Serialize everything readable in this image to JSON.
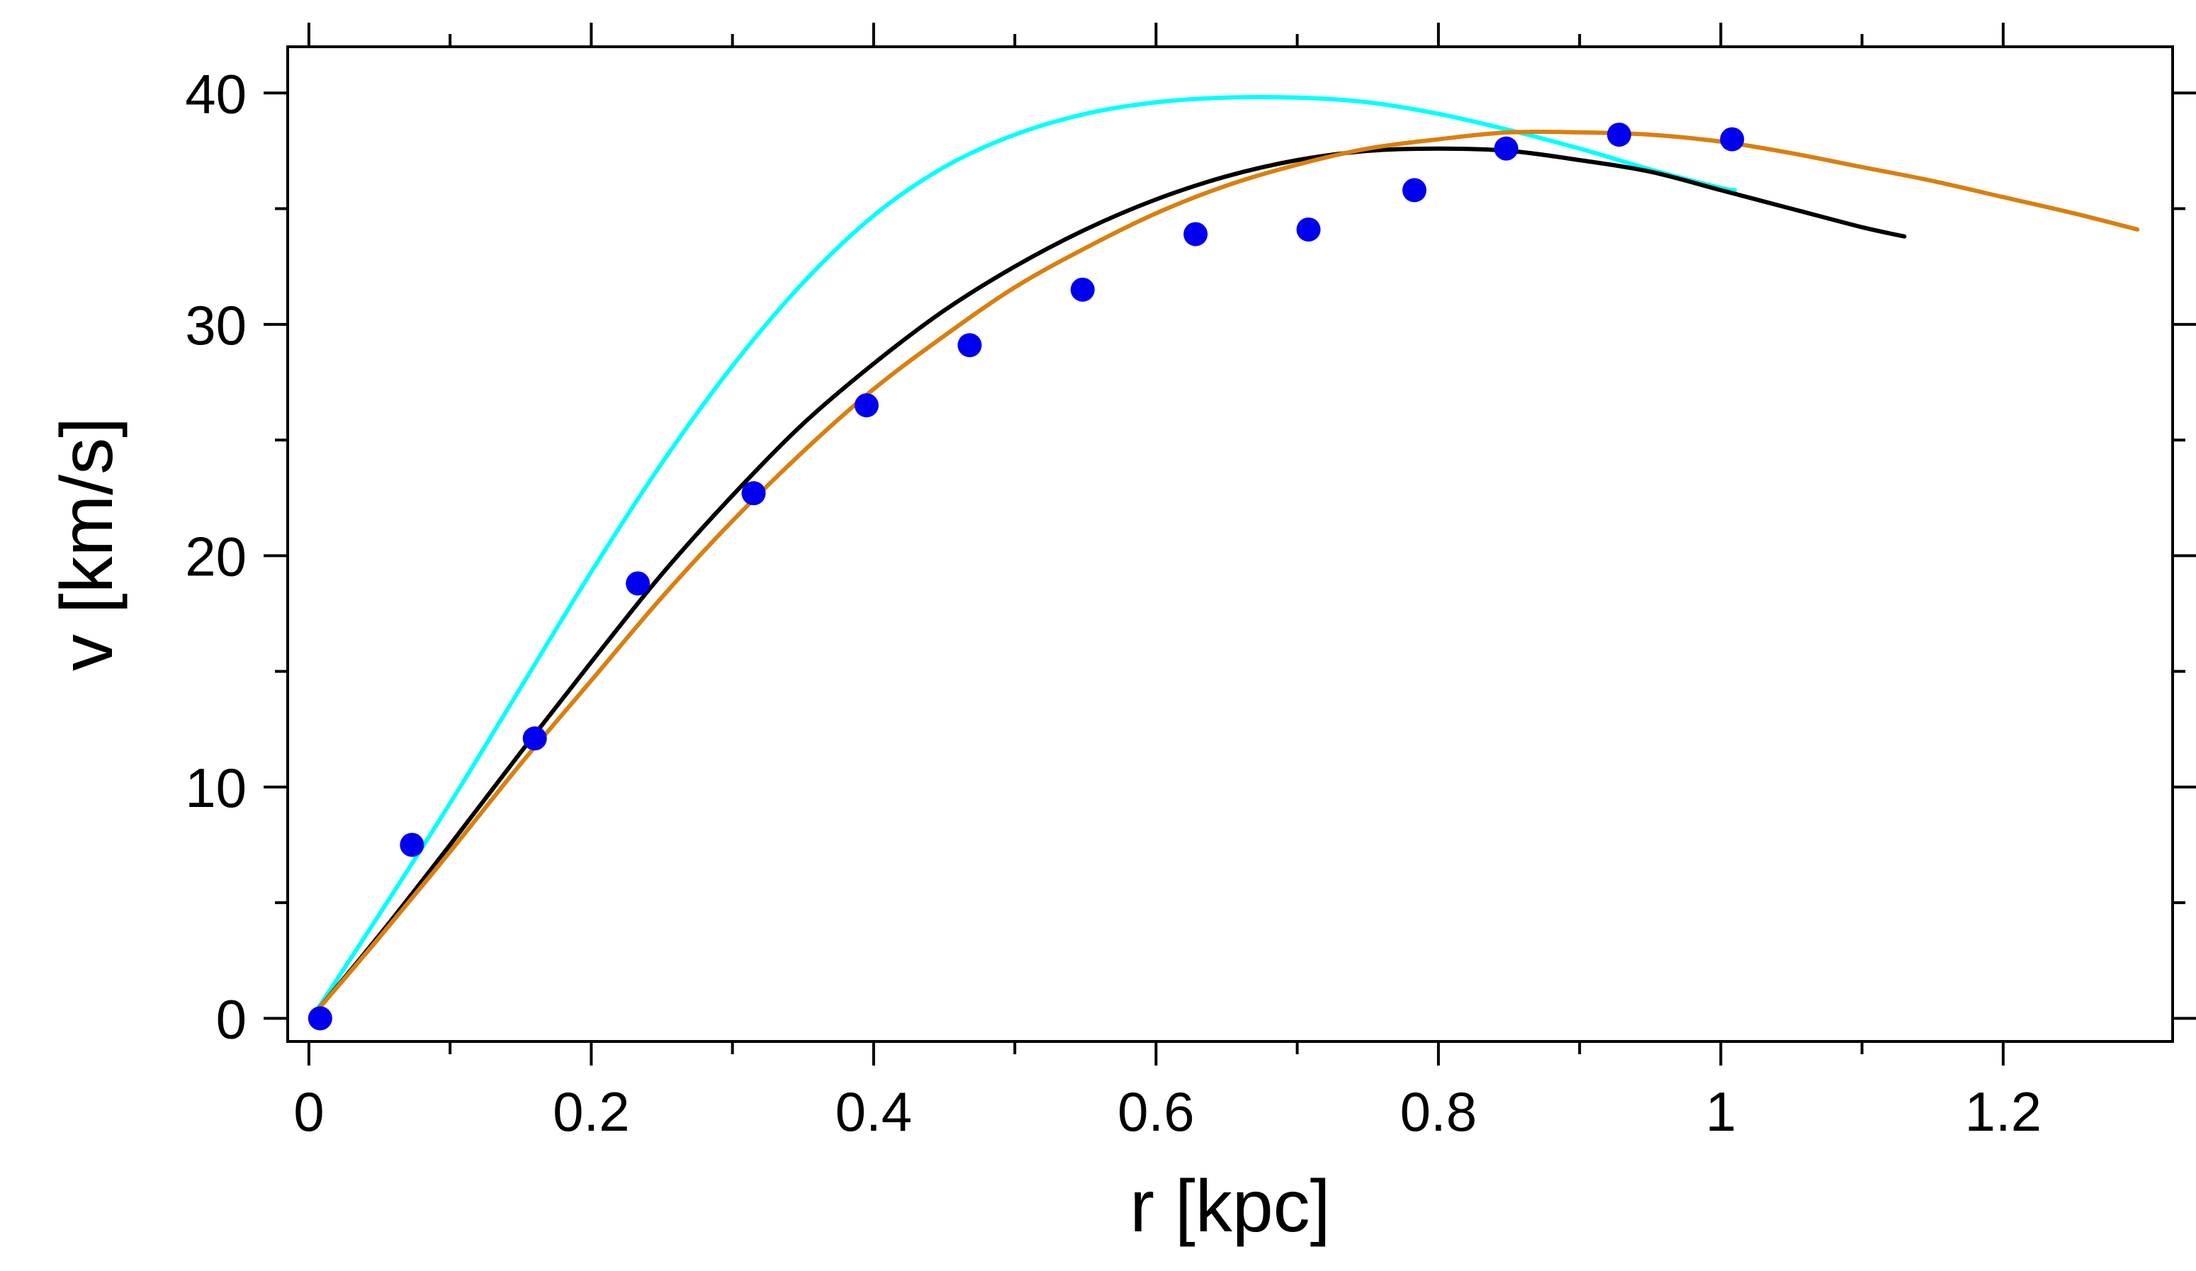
{
  "chart_data": {
    "type": "line",
    "title": "",
    "xlabel": "r [kpc]",
    "ylabel": "v [km/s]",
    "xlim": [
      -0.015,
      1.32
    ],
    "ylim": [
      -1,
      42
    ],
    "grid": false,
    "x_ticks": [
      0,
      0.2,
      0.4,
      0.6,
      0.8,
      1,
      1.2
    ],
    "x_tick_labels": [
      "0",
      "0.2",
      "0.4",
      "0.6",
      "0.8",
      "1",
      "1.2"
    ],
    "y_ticks": [
      0,
      10,
      20,
      30,
      40
    ],
    "y_tick_labels": [
      "0",
      "10",
      "20",
      "30",
      "40"
    ],
    "series": [
      {
        "name": "cyan model",
        "kind": "line",
        "color": "#00FFFF",
        "x": [
          0.004,
          0.05,
          0.1,
          0.15,
          0.2,
          0.25,
          0.3,
          0.35,
          0.4,
          0.45,
          0.5,
          0.55,
          0.6,
          0.65,
          0.7,
          0.75,
          0.8,
          0.85,
          0.9,
          0.95,
          1.0,
          1.01
        ],
        "y": [
          0.2,
          4.5,
          9.3,
          14.3,
          19.3,
          24.0,
          28.2,
          31.8,
          34.7,
          36.8,
          38.2,
          39.1,
          39.6,
          39.8,
          39.8,
          39.6,
          39.1,
          38.4,
          37.6,
          36.7,
          35.9,
          35.8
        ]
      },
      {
        "name": "black model",
        "kind": "line",
        "color": "#000000",
        "x": [
          0.004,
          0.05,
          0.1,
          0.15,
          0.2,
          0.25,
          0.3,
          0.35,
          0.4,
          0.45,
          0.5,
          0.55,
          0.6,
          0.65,
          0.7,
          0.75,
          0.8,
          0.85,
          0.9,
          0.95,
          1.0,
          1.05,
          1.1,
          1.13
        ],
        "y": [
          0.2,
          3.6,
          7.5,
          11.5,
          15.4,
          19.2,
          22.6,
          25.7,
          28.3,
          30.6,
          32.5,
          34.1,
          35.4,
          36.4,
          37.1,
          37.5,
          37.6,
          37.5,
          37.1,
          36.6,
          35.8,
          35.0,
          34.2,
          33.8
        ]
      },
      {
        "name": "orange model",
        "kind": "line",
        "color": "#D97F10",
        "x": [
          0.004,
          0.05,
          0.1,
          0.15,
          0.2,
          0.25,
          0.3,
          0.35,
          0.4,
          0.45,
          0.5,
          0.55,
          0.6,
          0.65,
          0.7,
          0.75,
          0.8,
          0.85,
          0.9,
          0.95,
          1.0,
          1.05,
          1.1,
          1.15,
          1.2,
          1.25,
          1.295
        ],
        "y": [
          0.2,
          3.5,
          7.2,
          11.0,
          14.6,
          18.2,
          21.5,
          24.5,
          27.2,
          29.5,
          31.6,
          33.3,
          34.8,
          36.0,
          36.9,
          37.6,
          38.0,
          38.3,
          38.3,
          38.2,
          37.9,
          37.4,
          36.8,
          36.2,
          35.5,
          34.8,
          34.1
        ]
      },
      {
        "name": "data",
        "kind": "scatter",
        "color": "#0000EE",
        "x": [
          0.008,
          0.073,
          0.16,
          0.233,
          0.315,
          0.395,
          0.468,
          0.548,
          0.628,
          0.708,
          0.783,
          0.848,
          0.928,
          1.008
        ],
        "y": [
          0.0,
          7.5,
          12.1,
          18.8,
          22.7,
          26.5,
          29.1,
          31.5,
          33.9,
          34.1,
          35.8,
          37.6,
          38.2,
          38.0
        ]
      }
    ]
  }
}
